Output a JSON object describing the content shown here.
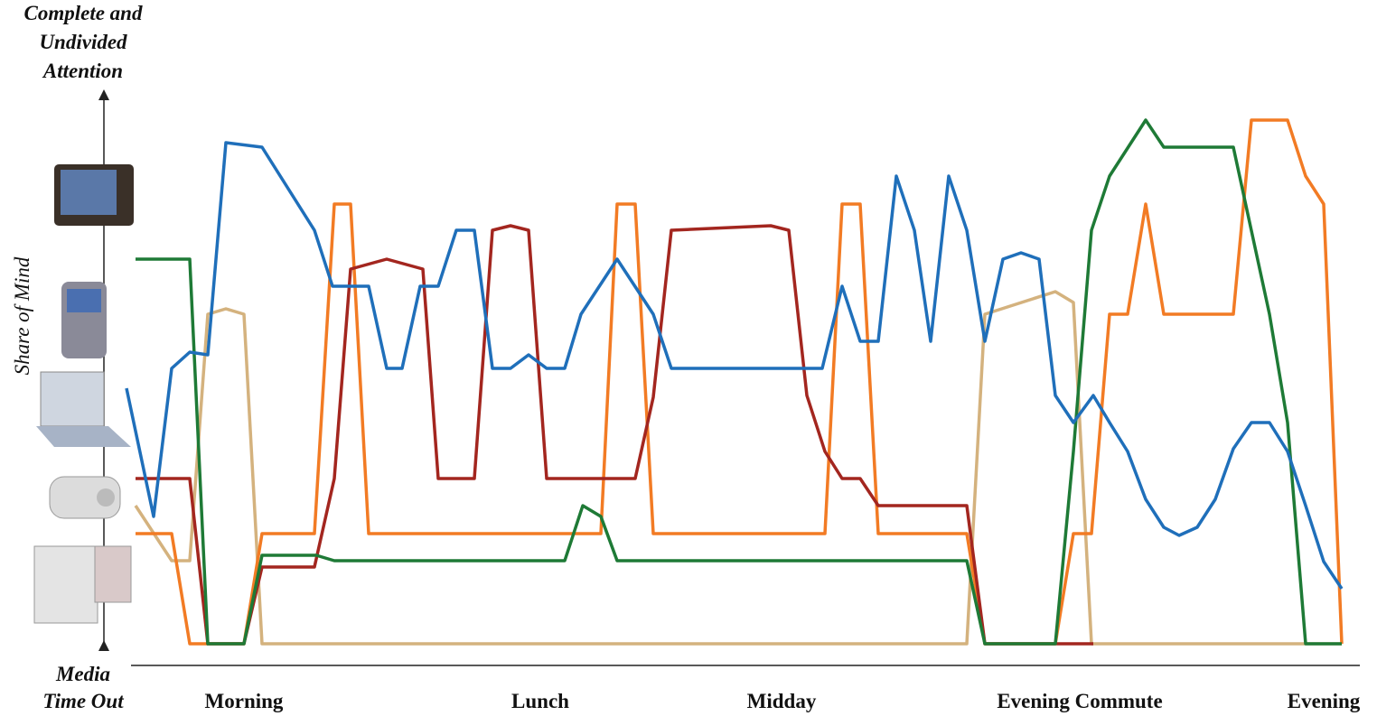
{
  "chart_data": {
    "type": "line",
    "top_label": [
      "Complete and",
      "Undivided",
      "Attention"
    ],
    "bottom_label": [
      "Media",
      "Time Out"
    ],
    "y_label": "Share of Mind",
    "xlim": [
      0,
      1350
    ],
    "ylim": [
      0,
      610
    ],
    "xticks": [
      {
        "value": 130,
        "label": "Morning"
      },
      {
        "value": 458,
        "label": "Lunch"
      },
      {
        "value": 725,
        "label": "Midday"
      },
      {
        "value": 1055,
        "label": "Evening Commute"
      },
      {
        "value": 1325,
        "label": "Evening"
      }
    ],
    "series": [
      {
        "color": "#d4b27e",
        "x": [
          10,
          50,
          70,
          90,
          110,
          130,
          150,
          930,
          950,
          1028,
          1048,
          1068,
          1345
        ],
        "values": [
          153,
          92,
          92,
          365,
          371,
          365,
          0,
          0,
          365,
          390,
          378,
          0,
          0
        ]
      },
      {
        "color": "#f27b24",
        "x": [
          10,
          50,
          70,
          130,
          150,
          208,
          230,
          248,
          268,
          525,
          543,
          563,
          583,
          773,
          792,
          812,
          832,
          930,
          950,
          1028,
          1048,
          1068,
          1088,
          1108,
          1128,
          1148,
          1225,
          1245,
          1285,
          1305,
          1325,
          1345
        ],
        "values": [
          122,
          122,
          0,
          0,
          122,
          122,
          487,
          487,
          122,
          122,
          487,
          487,
          122,
          122,
          487,
          487,
          122,
          122,
          0,
          0,
          122,
          122,
          365,
          365,
          487,
          365,
          365,
          580,
          580,
          518,
          487,
          0
        ]
      },
      {
        "color": "#a3261f",
        "x": [
          10,
          70,
          90,
          130,
          150,
          208,
          230,
          248,
          288,
          328,
          345,
          385,
          405,
          425,
          445,
          465,
          563,
          583,
          603,
          713,
          733,
          753,
          773,
          792,
          812,
          832,
          930,
          950,
          1070
        ],
        "values": [
          183,
          183,
          0,
          0,
          85,
          85,
          183,
          415,
          426,
          415,
          183,
          183,
          458,
          463,
          458,
          183,
          183,
          273,
          458,
          463,
          458,
          275,
          213,
          183,
          183,
          153,
          153,
          0,
          0
        ]
      },
      {
        "color": "#1e7a36",
        "x": [
          10,
          70,
          90,
          130,
          150,
          210,
          230,
          485,
          505,
          525,
          543,
          930,
          950,
          1028,
          1048,
          1068,
          1088,
          1128,
          1148,
          1225,
          1265,
          1285,
          1305,
          1345
        ],
        "values": [
          426,
          426,
          0,
          0,
          98,
          98,
          92,
          92,
          153,
          141,
          92,
          92,
          0,
          0,
          213,
          458,
          518,
          580,
          550,
          550,
          365,
          245,
          0,
          0
        ]
      },
      {
        "color": "#1f6fba",
        "x": [
          0,
          30,
          50,
          70,
          90,
          110,
          150,
          208,
          228,
          268,
          288,
          305,
          325,
          345,
          365,
          385,
          405,
          425,
          445,
          465,
          485,
          503,
          543,
          583,
          603,
          770,
          792,
          812,
          832,
          852,
          872,
          890,
          910,
          930,
          950,
          970,
          990,
          1010,
          1028,
          1048,
          1070,
          1088,
          1108,
          1128,
          1148,
          1165,
          1185,
          1205,
          1225,
          1245,
          1265,
          1285,
          1305,
          1325,
          1345
        ],
        "values": [
          283,
          141,
          305,
          323,
          320,
          555,
          550,
          458,
          396,
          396,
          305,
          305,
          396,
          396,
          458,
          458,
          305,
          305,
          320,
          305,
          305,
          365,
          426,
          365,
          305,
          305,
          396,
          335,
          335,
          518,
          458,
          335,
          518,
          458,
          335,
          426,
          433,
          426,
          275,
          245,
          275,
          245,
          213,
          160,
          129,
          120,
          129,
          160,
          216,
          245,
          245,
          213,
          153,
          91,
          61
        ]
      }
    ]
  }
}
